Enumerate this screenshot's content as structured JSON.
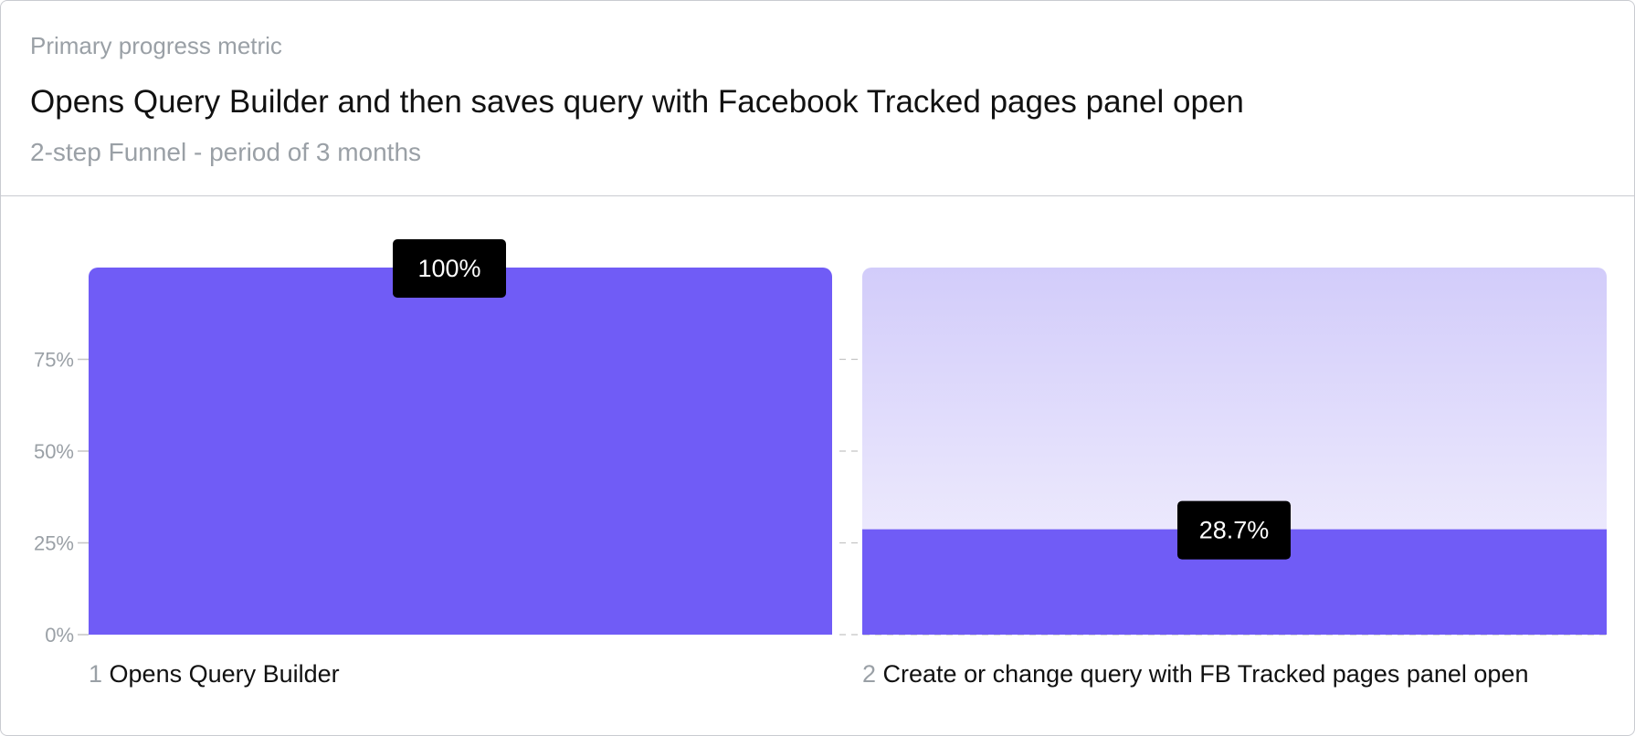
{
  "header": {
    "eyebrow": "Primary progress metric",
    "title": "Opens Query Builder and then saves query with Facebook Tracked pages panel open",
    "subtitle": "2-step Funnel - period of 3 months"
  },
  "chart_data": {
    "type": "bar",
    "categories": [
      "Opens Query Builder",
      "Create or change query with FB Tracked pages panel open"
    ],
    "step_numbers": [
      "1",
      "2"
    ],
    "values": [
      100,
      28.7
    ],
    "value_labels": [
      "100%",
      "28.7%"
    ],
    "ylim": [
      0,
      100
    ],
    "yticks": [
      0,
      25,
      50,
      75
    ],
    "ytick_labels": [
      "0%",
      "25%",
      "50%",
      "75%"
    ],
    "grid": true,
    "colors": {
      "bar": "#705cf6",
      "bar_remaining_top": "#d2ccfa",
      "bar_remaining_bottom": "#f6f4fe",
      "label_bg": "#000000",
      "label_text": "#ffffff",
      "tick_text": "#9aa0a6",
      "grid": "#c4c4c4"
    }
  }
}
